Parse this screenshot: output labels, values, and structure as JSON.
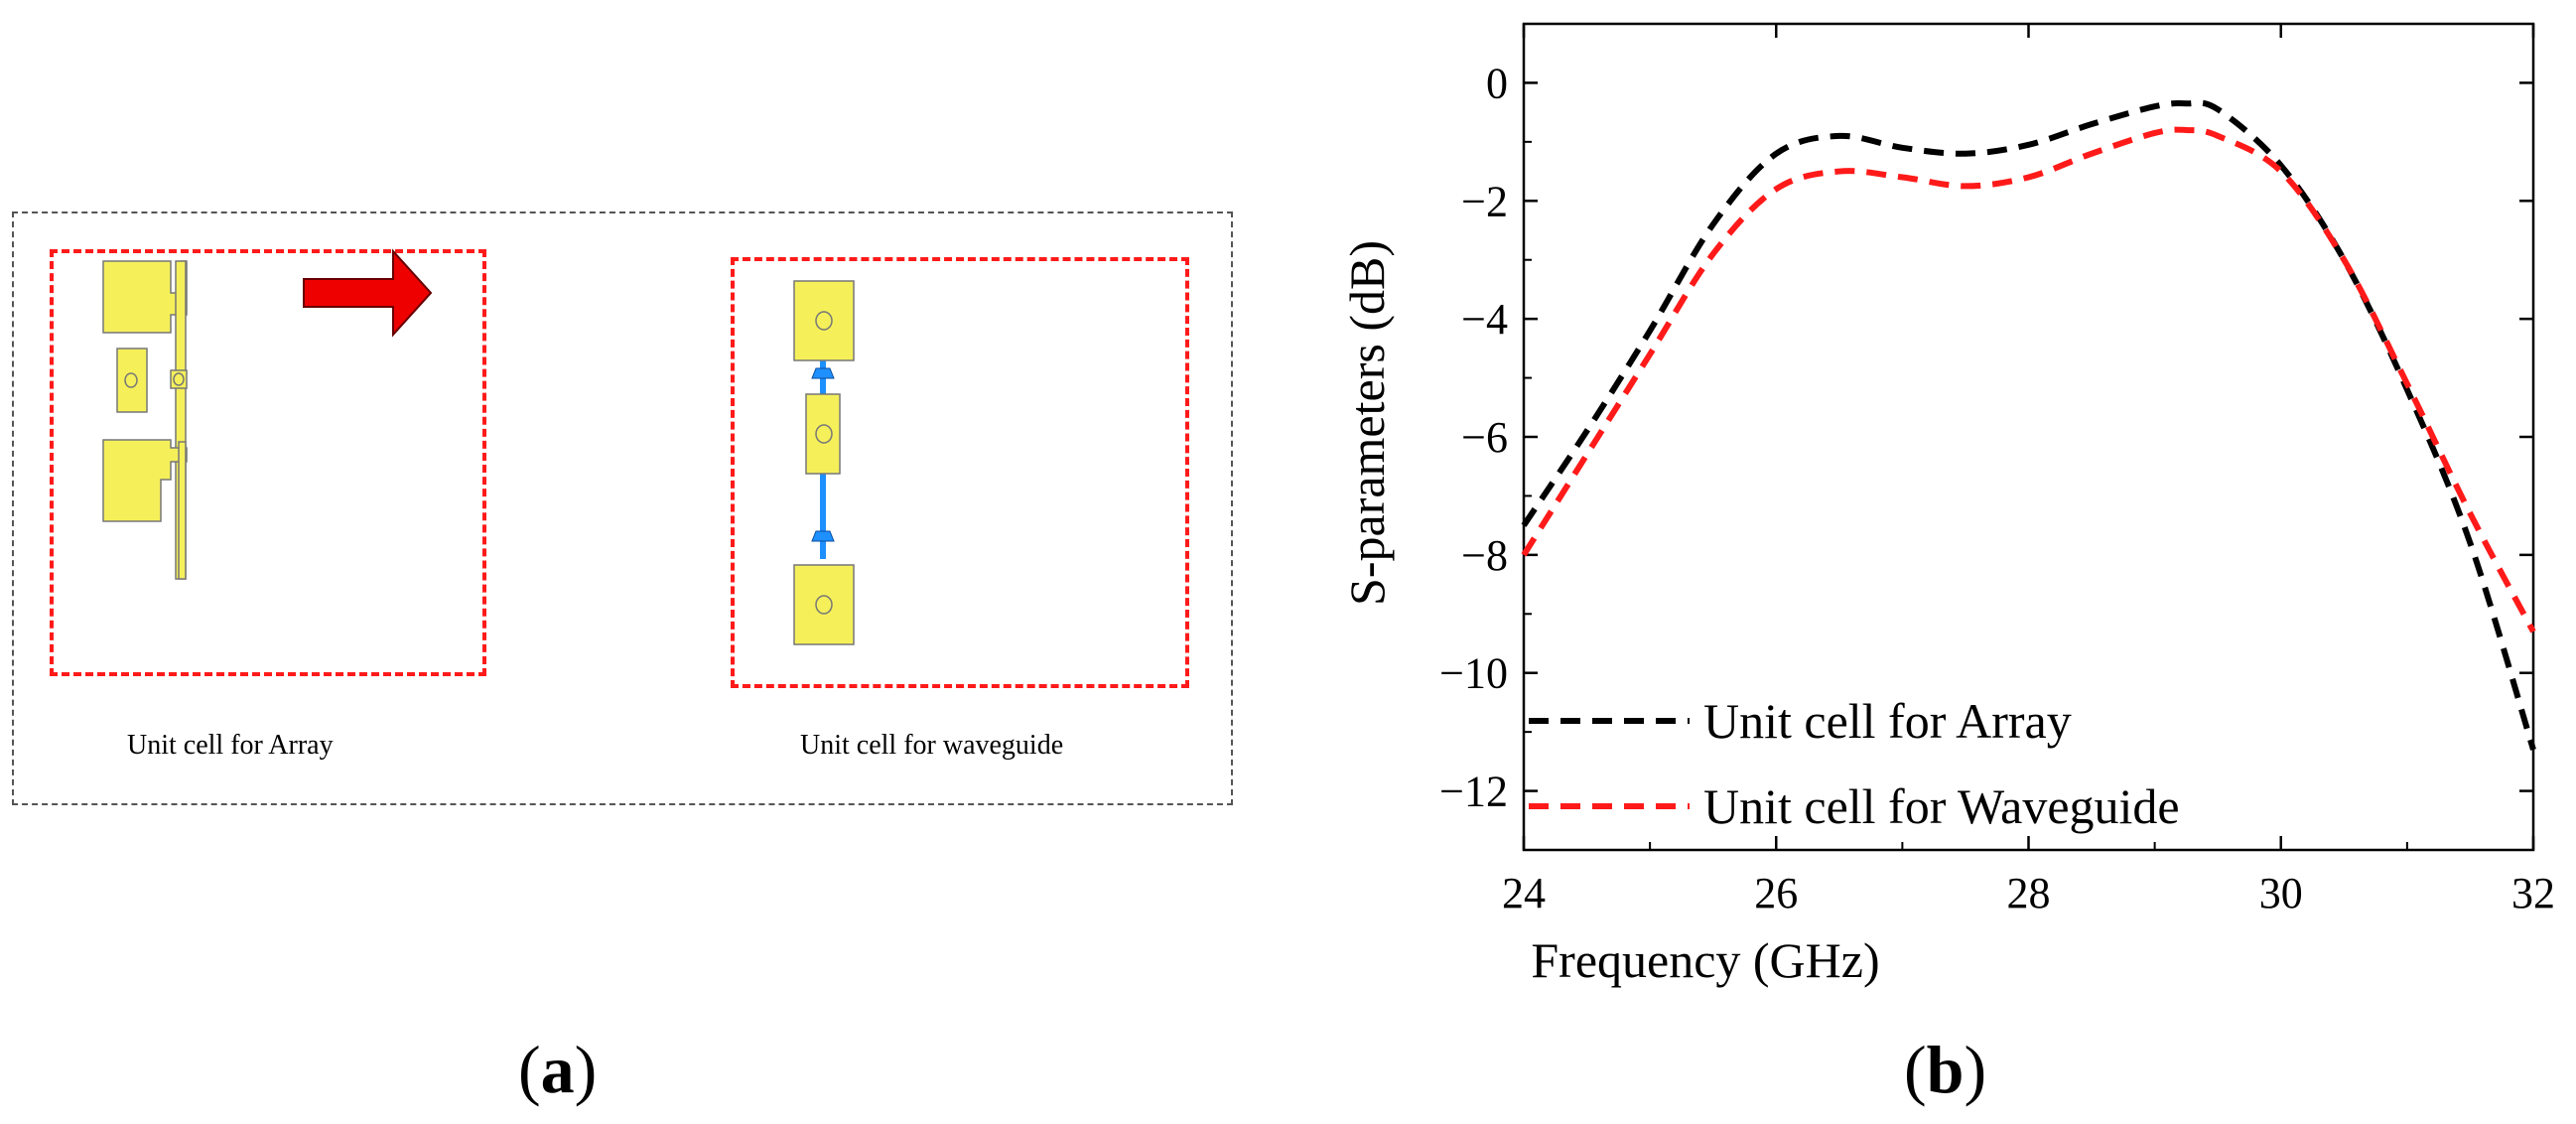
{
  "panel_a": {
    "array_caption": "Unit cell for Array",
    "waveguide_caption": "Unit cell for waveguide",
    "colors": {
      "patch": "#f5f05a",
      "via_blue": "#1e90ff",
      "box_red": "#ff1a1a",
      "arrow_red": "#ee0000"
    }
  },
  "labels": {
    "a": "a",
    "b": "b"
  },
  "chart_data": {
    "type": "line",
    "title": "",
    "xlabel": "Frequency (GHz)",
    "ylabel": "S-parameters (dB)",
    "xlim": [
      24,
      32
    ],
    "ylim": [
      -13,
      1
    ],
    "xticks": [
      24,
      26,
      28,
      30,
      32
    ],
    "yticks": [
      0,
      -2,
      -4,
      -6,
      -8,
      -10,
      -12
    ],
    "grid": false,
    "legend_position": "bottom-left",
    "series": [
      {
        "name": "Unit cell for Array",
        "color": "#000000",
        "dash": "dashed",
        "x": [
          24,
          24.5,
          25,
          25.5,
          26,
          26.5,
          27,
          27.5,
          28,
          28.5,
          29,
          29.25,
          29.5,
          30,
          30.5,
          31,
          31.5,
          32
        ],
        "y": [
          -7.5,
          -5.9,
          -4.2,
          -2.4,
          -1.2,
          -0.9,
          -1.1,
          -1.2,
          -1.05,
          -0.7,
          -0.4,
          -0.35,
          -0.45,
          -1.4,
          -3.0,
          -5.2,
          -7.8,
          -11.3
        ]
      },
      {
        "name": "Unit cell for Waveguide",
        "color": "#ff1a1a",
        "dash": "dashed",
        "x": [
          24,
          24.5,
          25,
          25.5,
          26,
          26.5,
          27,
          27.5,
          28,
          28.5,
          29,
          29.25,
          29.5,
          30,
          30.5,
          31,
          31.5,
          32
        ],
        "y": [
          -8.0,
          -6.3,
          -4.6,
          -2.9,
          -1.8,
          -1.5,
          -1.6,
          -1.75,
          -1.6,
          -1.2,
          -0.85,
          -0.8,
          -0.9,
          -1.5,
          -3.0,
          -5.1,
          -7.3,
          -9.3
        ]
      }
    ]
  }
}
